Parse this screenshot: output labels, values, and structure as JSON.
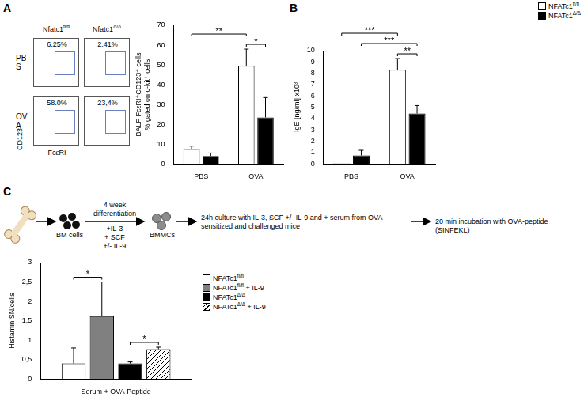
{
  "panel_labels": [
    "A",
    "B",
    "C"
  ],
  "flow_plots": {
    "columns": [
      "Nfatc1fl/fl",
      "Nfatc1Δ/Δ"
    ],
    "rows": [
      "PBS",
      "OVA"
    ],
    "percentages": [
      [
        "6.25%",
        "2.41%"
      ],
      [
        "58.0%",
        "23,4%"
      ]
    ],
    "x_label": "FcεRI",
    "y_label": "CD123"
  },
  "schematic": {
    "cells_label": "BM cells",
    "differentiation": "4 week differentiation",
    "supplements": [
      "+IL-3",
      "+ SCF",
      "+/- IL-9"
    ],
    "product_label": "BMMCs",
    "culture": "24h culture with IL-3, SCF +/- IL-9 and + serum from OVA sensitized and challenged mice",
    "incubation": "20 min incubation with OVA-peptide (SINFEKL)"
  },
  "chart_data": [
    {
      "type": "bar",
      "y_label": [
        "BALF FcεRI⁺CD123⁺ cells",
        "% gated on c-kit⁺ cells"
      ],
      "categories": [
        "PBS",
        "OVA"
      ],
      "series": [
        {
          "name": "NFATc1fl/fl",
          "color": "#ffffff",
          "values": [
            7.5,
            49.5
          ],
          "errors": [
            1.5,
            8.5
          ]
        },
        {
          "name": "NFATc1Δ/Δ",
          "color": "#000000",
          "values": [
            4,
            23.5
          ],
          "errors": [
            1.5,
            10
          ]
        }
      ],
      "ylim": [
        0,
        70
      ],
      "yticks": [
        0,
        10,
        20,
        30,
        40,
        50,
        60,
        70
      ],
      "grid": false,
      "annotations": [
        {
          "text": "*",
          "bars": [
            [
              "OVA",
              "NFATc1fl/fl"
            ],
            [
              "OVA",
              "NFATc1Δ/Δ"
            ]
          ]
        },
        {
          "text": "**",
          "bars": [
            [
              "PBS",
              "NFATc1fl/fl"
            ],
            [
              "OVA",
              "NFATc1fl/fl"
            ]
          ]
        }
      ]
    },
    {
      "type": "bar",
      "y_label": "IgE [ng/ml] x10³",
      "categories": [
        "PBS",
        "OVA"
      ],
      "series": [
        {
          "name": "NFATc1fl/fl",
          "color": "#ffffff",
          "values": [
            0.05,
            8.3
          ],
          "errors": [
            null,
            1.0
          ]
        },
        {
          "name": "NFATc1Δ/Δ",
          "color": "#000000",
          "values": [
            0.75,
            4.45
          ],
          "errors": [
            0.45,
            0.7
          ]
        }
      ],
      "ylim": [
        0,
        10
      ],
      "yticks": [
        0,
        1,
        2,
        3,
        4,
        5,
        6,
        7,
        8,
        9,
        10
      ],
      "grid": false,
      "legend": "top-right",
      "annotations": [
        {
          "text": "**",
          "bars": [
            [
              "OVA",
              "NFATc1fl/fl"
            ],
            [
              "OVA",
              "NFATc1Δ/Δ"
            ]
          ]
        },
        {
          "text": "***",
          "bars": [
            [
              "PBS",
              "NFATc1Δ/Δ"
            ],
            [
              "OVA",
              "NFATc1Δ/Δ"
            ]
          ]
        },
        {
          "text": "***",
          "bars": [
            [
              "PBS",
              "NFATc1fl/fl"
            ],
            [
              "OVA",
              "NFATc1fl/fl"
            ]
          ]
        }
      ]
    },
    {
      "type": "bar",
      "y_label": "Histamin SN/cells",
      "categories": [
        "Serum + OVA Peptide"
      ],
      "series": [
        {
          "name": "NFATc1fl/fl",
          "color": "#ffffff",
          "values": [
            0.4
          ],
          "errors": [
            0.4
          ]
        },
        {
          "name": "NFATc1fl/fl + IL-9",
          "color": "#808080",
          "values": [
            1.62
          ],
          "errors": [
            0.88
          ]
        },
        {
          "name": "NFATc1Δ/Δ",
          "color": "#000000",
          "values": [
            0.4
          ],
          "errors": [
            0.04
          ]
        },
        {
          "name": "NFATc1Δ/Δ + IL-9",
          "color": "#ffffff",
          "marker": "hatched",
          "values": [
            0.77
          ],
          "errors": [
            0.05
          ]
        }
      ],
      "ylim": [
        0,
        3
      ],
      "yticks": [
        0,
        {
          "value": 0.5,
          "label": "0,5"
        },
        1,
        {
          "value": 1.5,
          "label": "1,5"
        },
        2,
        {
          "value": 2.5,
          "label": "2,5"
        },
        3
      ],
      "grid": false,
      "legend": "right",
      "annotations": [
        {
          "text": "*",
          "bars": [
            [
              "Serum + OVA Peptide",
              "NFATc1fl/fl"
            ],
            [
              "Serum + OVA Peptide",
              "NFATc1fl/fl + IL-9"
            ]
          ]
        },
        {
          "text": "*",
          "bars": [
            [
              "Serum + OVA Peptide",
              "NFATc1Δ/Δ"
            ],
            [
              "Serum + OVA Peptide",
              "NFATc1Δ/Δ + IL-9"
            ]
          ]
        }
      ]
    }
  ]
}
